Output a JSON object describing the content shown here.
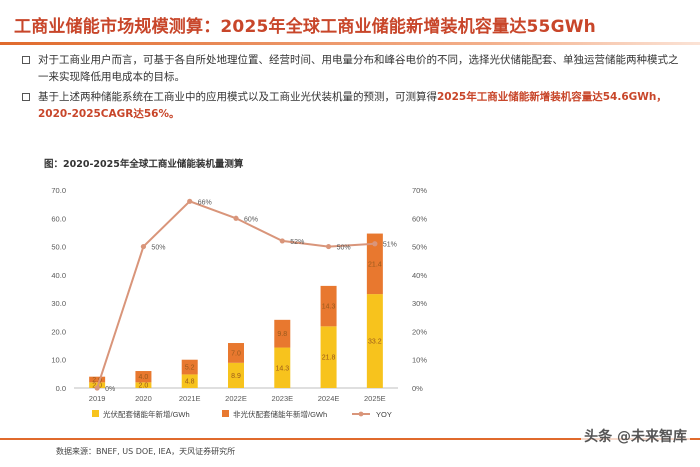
{
  "page": {
    "title": "工商业储能市场规模测算：2025年全球工商业储能新增装机容量达55GWh",
    "bullets": [
      {
        "text": "对于工商业用户而言，可基于各自所处地理位置、经营时间、用电量分布和峰谷电价的不同，选择光伏储能配套、单独运营储能两种模式之一来实现降低用电成本的目标。",
        "highlight": ""
      },
      {
        "text": "基于上述两种储能系统在工商业中的应用模式以及工商业光伏装机量的预测，可测算得",
        "highlight": "2025年工商业储能新增装机容量达54.6GWh，2020-2025CAGR达56%。"
      }
    ],
    "chart_title": "图：2020-2025年全球工商业储能装机量测算",
    "source": "数据来源：BNEF, US DOE, IEA，天风证券研究所",
    "watermark": "头条 @未来智库"
  },
  "chart_data": {
    "type": "bar",
    "stacked": true,
    "categories": [
      "2019",
      "2020",
      "2021E",
      "2022E",
      "2023E",
      "2024E",
      "2025E"
    ],
    "series": [
      {
        "name": "光伏配套储能年新增/GWh",
        "values": [
          2.0,
          2.0,
          4.8,
          8.9,
          14.3,
          21.8,
          33.2
        ],
        "color": "#f7c31d"
      },
      {
        "name": "非光伏配套储能年新增/GWh",
        "values": [
          2.0,
          4.0,
          5.2,
          7.0,
          9.8,
          14.3,
          21.4
        ],
        "color": "#e8782f"
      }
    ],
    "line": {
      "name": "YOY",
      "values": [
        0,
        50,
        66,
        60,
        52,
        50,
        51
      ],
      "color": "#d9957a"
    },
    "y_left": {
      "min": 0,
      "max": 70,
      "ticks": [
        "0.0",
        "10.0",
        "20.0",
        "30.0",
        "40.0",
        "50.0",
        "60.0",
        "70.0"
      ]
    },
    "y_right": {
      "min": 0,
      "max": 70,
      "ticks": [
        "0%",
        "10%",
        "20%",
        "30%",
        "40%",
        "50%",
        "60%",
        "70%"
      ]
    },
    "bar_label_color": "#9a5a1c",
    "legend_position": "bottom"
  }
}
